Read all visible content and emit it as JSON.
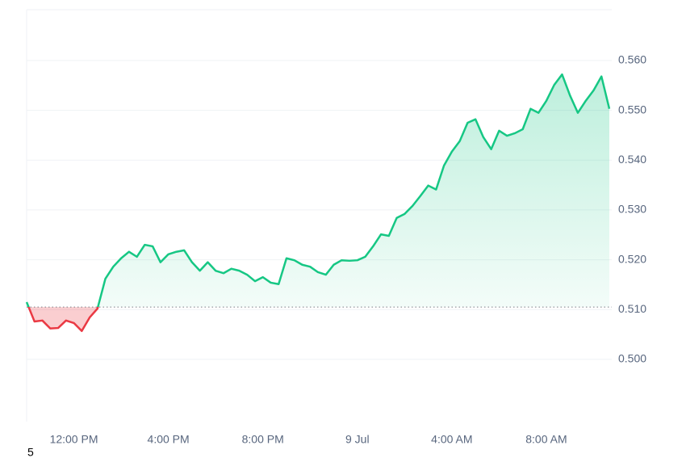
{
  "chart_data": {
    "type": "line",
    "categories": [
      null,
      null,
      null,
      null,
      null,
      null,
      "12:00 PM",
      null,
      null,
      null,
      null,
      null,
      null,
      null,
      null,
      null,
      null,
      null,
      "4:00 PM",
      null,
      null,
      null,
      null,
      null,
      null,
      null,
      null,
      null,
      null,
      null,
      "8:00 PM",
      null,
      null,
      null,
      null,
      null,
      null,
      null,
      null,
      null,
      null,
      null,
      "9 Jul",
      null,
      null,
      null,
      null,
      null,
      null,
      null,
      null,
      null,
      null,
      null,
      "4:00 AM",
      null,
      null,
      null,
      null,
      null,
      null,
      null,
      null,
      null,
      null,
      null,
      "8:00 AM",
      null,
      null,
      null,
      null,
      null,
      null,
      null,
      null
    ],
    "values": [
      0.5115,
      0.5076,
      0.5078,
      0.5062,
      0.5063,
      0.5078,
      0.5073,
      0.5057,
      0.5084,
      0.5102,
      0.5162,
      0.5186,
      0.5203,
      0.5216,
      0.5206,
      0.523,
      0.5227,
      0.5195,
      0.5211,
      0.5216,
      0.5219,
      0.5195,
      0.5178,
      0.5195,
      0.5178,
      0.5173,
      0.5182,
      0.5178,
      0.517,
      0.5157,
      0.5165,
      0.5154,
      0.5151,
      0.5203,
      0.5199,
      0.519,
      0.5186,
      0.5175,
      0.517,
      0.519,
      0.5199,
      0.5198,
      0.5199,
      0.5206,
      0.5227,
      0.5251,
      0.5248,
      0.5284,
      0.5292,
      0.5308,
      0.5328,
      0.5349,
      0.5341,
      0.5389,
      0.5417,
      0.5438,
      0.5475,
      0.5482,
      0.5446,
      0.5422,
      0.5459,
      0.5449,
      0.5454,
      0.5462,
      0.5503,
      0.5495,
      0.5519,
      0.5551,
      0.5572,
      0.553,
      0.5495,
      0.5519,
      0.554,
      0.5568,
      0.5503
    ],
    "baseline": 0.5105,
    "up_color": "#16c784",
    "down_color": "#ea3943",
    "ylim": [
      0.4875,
      0.5702
    ],
    "yticks": [
      {
        "value": 0.5,
        "label": "0.500"
      },
      {
        "value": 0.51,
        "label": "0.510"
      },
      {
        "value": 0.52,
        "label": "0.520"
      },
      {
        "value": 0.53,
        "label": "0.530"
      },
      {
        "value": 0.54,
        "label": "0.540"
      },
      {
        "value": 0.55,
        "label": "0.550"
      },
      {
        "value": 0.56,
        "label": "0.560"
      }
    ],
    "grid": true,
    "footnote": "5"
  }
}
